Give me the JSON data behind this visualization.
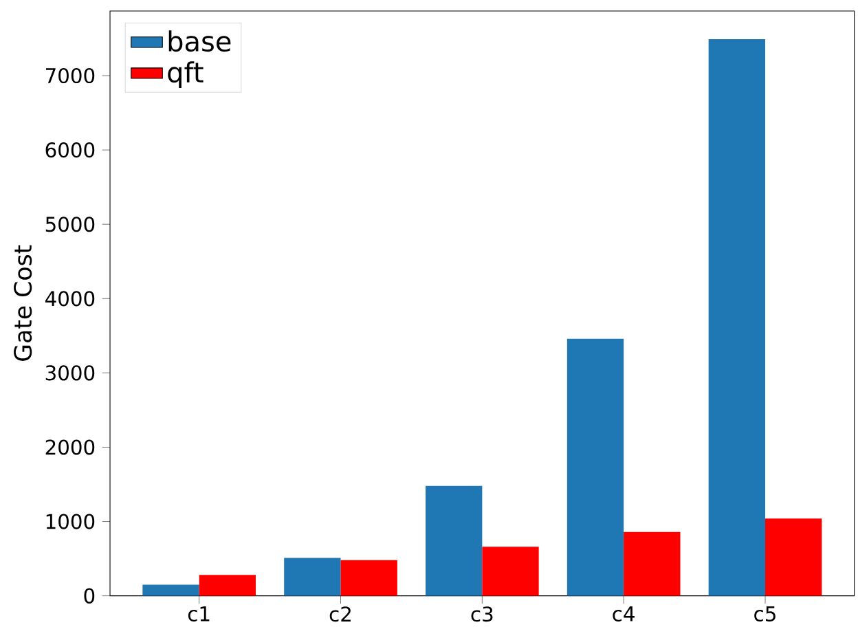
{
  "chart_data": {
    "type": "bar",
    "ylabel": "Gate Cost",
    "categories": [
      "c1",
      "c2",
      "c3",
      "c4",
      "c5"
    ],
    "series": [
      {
        "name": "base",
        "color": "#1f77b4",
        "values": [
          150,
          510,
          1480,
          3460,
          7490
        ]
      },
      {
        "name": "qft",
        "color": "#ff0000",
        "values": [
          280,
          480,
          660,
          860,
          1040
        ]
      }
    ],
    "ylim": [
      0,
      7870
    ],
    "yticks": [
      0,
      1000,
      2000,
      3000,
      4000,
      5000,
      6000,
      7000
    ],
    "legend": "top left"
  }
}
